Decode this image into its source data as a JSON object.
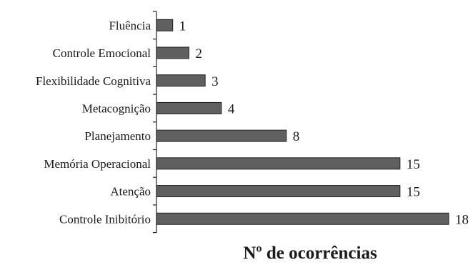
{
  "chart_data": {
    "type": "bar",
    "orientation": "horizontal",
    "categories": [
      "Fluência",
      "Controle Emocional",
      "Flexibilidade Cognitiva",
      "Metacognição",
      "Planejamento",
      "Memória Operacional",
      "Atenção",
      "Controle Inibitório"
    ],
    "values": [
      1,
      2,
      3,
      4,
      8,
      15,
      15,
      18
    ],
    "xlabel": "Nº de ocorrências",
    "ylabel": "",
    "xlim": [
      0,
      18
    ],
    "grid": false,
    "legend": "none",
    "data_labels": true,
    "bar_color": "#606060"
  }
}
